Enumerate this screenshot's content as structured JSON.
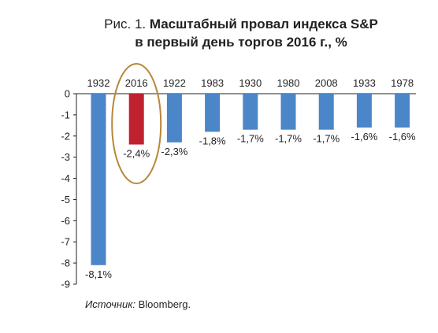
{
  "chart_data": {
    "type": "bar",
    "title_prefix": "Рис. 1.",
    "title_line1": "Масштабный провал индекса S&P",
    "title_line2": "в первый день торгов 2016 г., %",
    "categories": [
      "1932",
      "2016",
      "1922",
      "1983",
      "1930",
      "1980",
      "2008",
      "1933",
      "1978"
    ],
    "values": [
      -8.1,
      -2.4,
      -2.3,
      -1.8,
      -1.7,
      -1.7,
      -1.7,
      -1.6,
      -1.6
    ],
    "data_labels": [
      "-8,1%",
      "-2,4%",
      "-2,3%",
      "-1,8%",
      "-1,7%",
      "-1,7%",
      "-1,7%",
      "-1,6%",
      "-1,6%"
    ],
    "y_ticks": [
      "0",
      "-1",
      "-2",
      "-3",
      "-4",
      "-5",
      "-6",
      "-7",
      "-8",
      "-9"
    ],
    "ylim": [
      -9,
      0
    ],
    "xlabel": "",
    "ylabel": "",
    "grid": false,
    "highlight_category": "2016",
    "colors": {
      "bar": "#4a86c8",
      "highlight": "#c0212e",
      "ellipse": "#b8873a"
    }
  },
  "source": {
    "label": "Источник:",
    "text": " Bloomberg."
  }
}
